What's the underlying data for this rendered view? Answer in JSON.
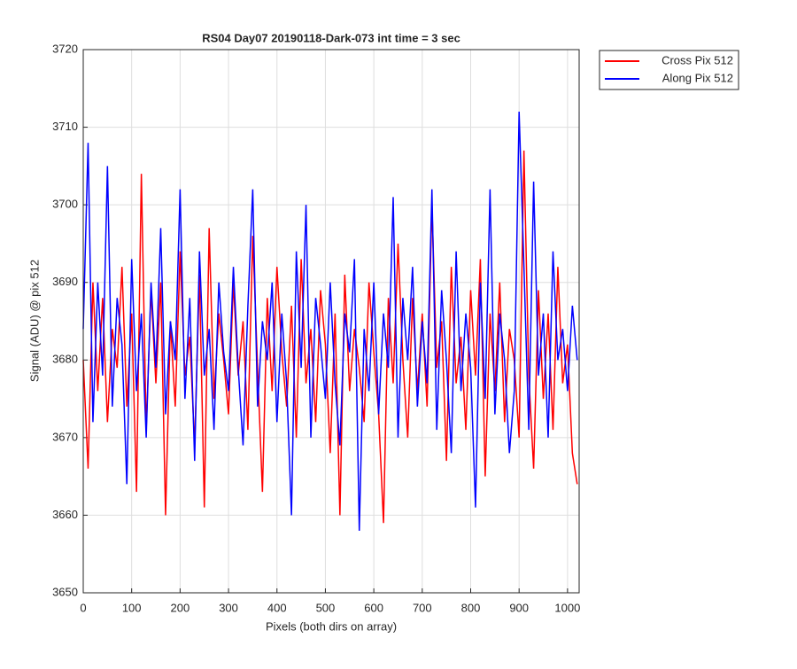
{
  "chart_data": {
    "type": "line",
    "title": "RS04 Day07 20190118-Dark-073 int time = 3 sec",
    "x_label": "Pixels (both dirs on array)",
    "y_label": "Signal (ADU) @ pix 512",
    "x": [
      0,
      10,
      20,
      30,
      40,
      50,
      60,
      70,
      80,
      90,
      100,
      110,
      120,
      130,
      140,
      150,
      160,
      170,
      180,
      190,
      200,
      210,
      220,
      230,
      240,
      250,
      260,
      270,
      280,
      290,
      300,
      310,
      320,
      330,
      340,
      350,
      360,
      370,
      380,
      390,
      400,
      410,
      420,
      430,
      440,
      450,
      460,
      470,
      480,
      490,
      500,
      510,
      520,
      530,
      540,
      550,
      560,
      570,
      580,
      590,
      600,
      610,
      620,
      630,
      640,
      650,
      660,
      670,
      680,
      690,
      700,
      710,
      720,
      730,
      740,
      750,
      760,
      770,
      780,
      790,
      800,
      810,
      820,
      830,
      840,
      850,
      860,
      870,
      880,
      890,
      900,
      910,
      920,
      930,
      940,
      950,
      960,
      970,
      980,
      990,
      1000,
      1010,
      1020
    ],
    "series": [
      {
        "name": "Cross Pix 512",
        "color": "#ff0000",
        "values": [
          3680,
          3666,
          3690,
          3676,
          3688,
          3672,
          3684,
          3679,
          3692,
          3674,
          3686,
          3663,
          3704,
          3671,
          3689,
          3677,
          3690,
          3660,
          3685,
          3674,
          3694,
          3678,
          3683,
          3669,
          3691,
          3661,
          3697,
          3675,
          3686,
          3680,
          3673,
          3690,
          3678,
          3685,
          3671,
          3696,
          3679,
          3663,
          3688,
          3676,
          3692,
          3681,
          3674,
          3687,
          3670,
          3693,
          3677,
          3684,
          3672,
          3689,
          3682,
          3668,
          3686,
          3660,
          3691,
          3676,
          3684,
          3679,
          3672,
          3690,
          3681,
          3673,
          3659,
          3688,
          3677,
          3695,
          3680,
          3670,
          3688,
          3676,
          3686,
          3674,
          3700,
          3679,
          3685,
          3667,
          3692,
          3677,
          3683,
          3671,
          3689,
          3678,
          3693,
          3665,
          3686,
          3676,
          3690,
          3672,
          3684,
          3680,
          3670,
          3707,
          3678,
          3666,
          3689,
          3675,
          3686,
          3671,
          3692,
          3677,
          3682,
          3668,
          3664
        ]
      },
      {
        "name": "Along Pix 512",
        "color": "#0000ff",
        "values": [
          3684,
          3708,
          3672,
          3690,
          3678,
          3705,
          3674,
          3688,
          3682,
          3664,
          3693,
          3676,
          3686,
          3670,
          3690,
          3679,
          3697,
          3673,
          3685,
          3680,
          3702,
          3675,
          3688,
          3667,
          3694,
          3678,
          3684,
          3671,
          3690,
          3681,
          3676,
          3692,
          3679,
          3669,
          3687,
          3702,
          3674,
          3685,
          3680,
          3690,
          3672,
          3686,
          3677,
          3660,
          3694,
          3679,
          3700,
          3670,
          3688,
          3682,
          3675,
          3690,
          3677,
          3669,
          3686,
          3681,
          3693,
          3658,
          3684,
          3676,
          3690,
          3673,
          3686,
          3679,
          3701,
          3670,
          3688,
          3680,
          3692,
          3674,
          3685,
          3677,
          3702,
          3671,
          3689,
          3680,
          3668,
          3694,
          3676,
          3686,
          3679,
          3661,
          3690,
          3675,
          3702,
          3673,
          3686,
          3680,
          3668,
          3676,
          3712,
          3692,
          3671,
          3703,
          3678,
          3686,
          3670,
          3694,
          3680,
          3684,
          3676,
          3687,
          3680
        ]
      }
    ],
    "xlim": [
      0,
      1024
    ],
    "ylim": [
      3650,
      3720
    ],
    "xticks": [
      0,
      100,
      200,
      300,
      400,
      500,
      600,
      700,
      800,
      900,
      1000
    ],
    "yticks": [
      3650,
      3660,
      3670,
      3680,
      3690,
      3700,
      3710,
      3720
    ],
    "grid": true,
    "legend": "outside-top-right"
  }
}
